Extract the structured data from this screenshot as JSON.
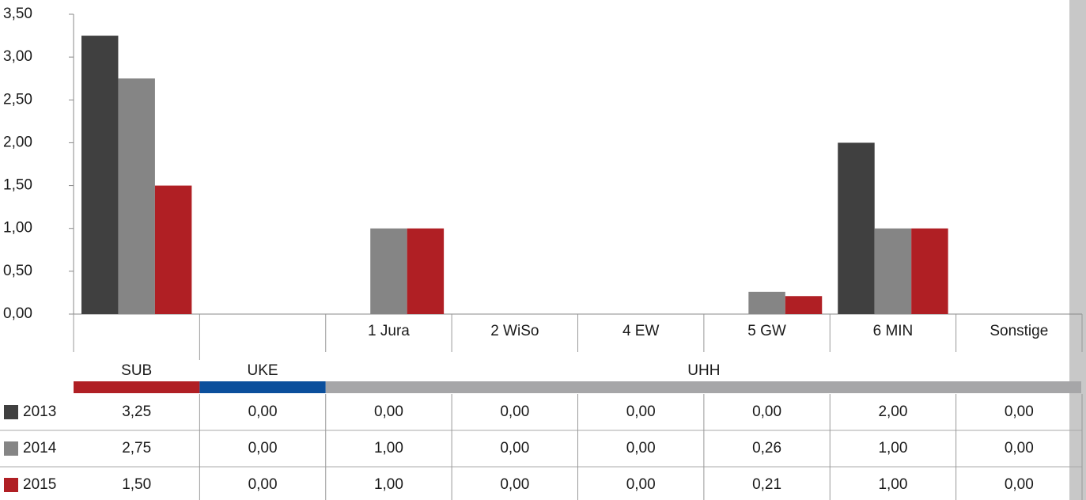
{
  "chart_data": {
    "type": "bar",
    "categories": [
      null,
      null,
      "1 Jura",
      "2 WiSo",
      "4 EW",
      "5 GW",
      "6 MIN",
      "Sonstige"
    ],
    "groups": [
      {
        "name": "SUB",
        "color": "#b01f24",
        "span": 1
      },
      {
        "name": "UKE",
        "color": "#0b4f9c",
        "span": 1
      },
      {
        "name": "UHH",
        "color": "#a6a6a8",
        "span": 6
      }
    ],
    "series": [
      {
        "name": "2013",
        "color": "#404040",
        "values": [
          3.25,
          0,
          0,
          0,
          0,
          0,
          2,
          0
        ],
        "value_labels": [
          "3,25",
          "0,00",
          "0,00",
          "0,00",
          "0,00",
          "0,00",
          "2,00",
          "0,00"
        ]
      },
      {
        "name": "2014",
        "color": "#858585",
        "values": [
          2.75,
          0,
          1,
          0,
          0,
          0.26,
          1,
          0
        ],
        "value_labels": [
          "2,75",
          "0,00",
          "1,00",
          "0,00",
          "0,00",
          "0,26",
          "1,00",
          "0,00"
        ]
      },
      {
        "name": "2015",
        "color": "#b01f24",
        "values": [
          1.5,
          0,
          1,
          0,
          0,
          0.21,
          1,
          0
        ],
        "value_labels": [
          "1,50",
          "0,00",
          "1,00",
          "0,00",
          "0,00",
          "0,21",
          "1,00",
          "0,00"
        ]
      }
    ],
    "ylim": [
      0,
      3.5
    ],
    "yticks": [
      {
        "value": 0,
        "label": "0,00"
      },
      {
        "value": 0.5,
        "label": "0,50"
      },
      {
        "value": 1,
        "label": "1,00"
      },
      {
        "value": 1.5,
        "label": "1,50"
      },
      {
        "value": 2,
        "label": "2,00"
      },
      {
        "value": 2.5,
        "label": "2,50"
      },
      {
        "value": 3,
        "label": "3,00"
      },
      {
        "value": 3.5,
        "label": "3,50"
      }
    ]
  }
}
